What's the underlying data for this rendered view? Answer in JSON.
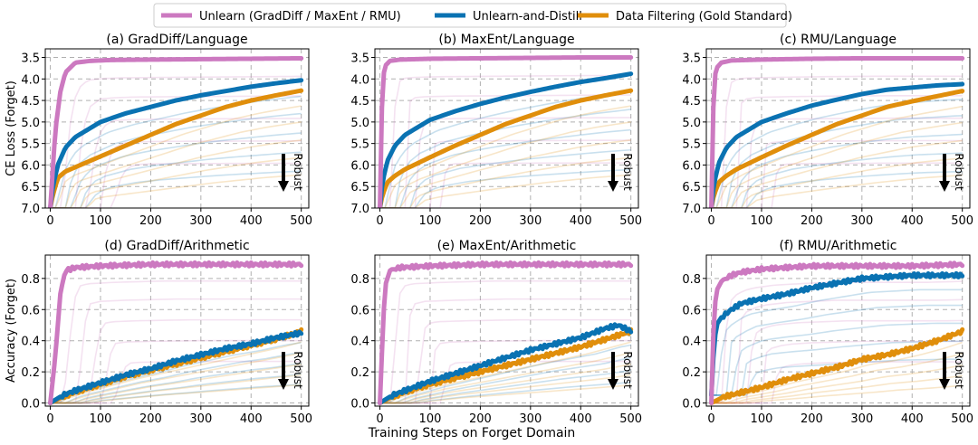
{
  "legend": {
    "items": [
      {
        "label": "Unlearn (GradDiff / MaxEnt / RMU)",
        "color": "#cc79c0"
      },
      {
        "label": "Unlearn-and-Distill",
        "color": "#0a72b2"
      },
      {
        "label": "Data Filtering (Gold Standard)",
        "color": "#e08e0b"
      }
    ]
  },
  "shared": {
    "xlabel": "Training Steps on Forget Domain",
    "robust_label": "Robust",
    "colors": {
      "unlearn": "#cc79c0",
      "distill": "#0a72b2",
      "filter": "#e08e0b",
      "grid": "#b0b0b0"
    }
  },
  "chart_data": [
    {
      "type": "line",
      "title": "(a) GradDiff/Language",
      "ylabel": "CE Loss (Forget)",
      "xlim": [
        -10,
        515
      ],
      "ylim": [
        7.0,
        3.3
      ],
      "y_inverted": true,
      "xticks": [
        0,
        100,
        200,
        300,
        400,
        500
      ],
      "xtick_labels": [
        "0",
        "100",
        "200",
        "300",
        "400",
        "500"
      ],
      "yticks": [
        3.5,
        4.0,
        4.5,
        5.0,
        5.5,
        6.0,
        6.5,
        7.0
      ],
      "ytick_labels": [
        "3.5",
        "4.0",
        "4.5",
        "5.0",
        "5.5",
        "6.0",
        "6.5",
        "7.0"
      ],
      "series": [
        {
          "name": "Unlearn (GradDiff / MaxEnt / RMU)",
          "x": [
            0,
            10,
            20,
            30,
            50,
            80,
            120,
            200,
            300,
            400,
            500
          ],
          "y": [
            7.0,
            5.2,
            4.3,
            3.85,
            3.62,
            3.58,
            3.56,
            3.55,
            3.54,
            3.53,
            3.52
          ]
        },
        {
          "name": "Unlearn-and-Distill",
          "x": [
            0,
            5,
            15,
            30,
            50,
            100,
            150,
            200,
            250,
            300,
            350,
            400,
            450,
            500
          ],
          "y": [
            7.0,
            6.5,
            6.0,
            5.6,
            5.35,
            5.0,
            4.8,
            4.65,
            4.5,
            4.38,
            4.28,
            4.18,
            4.1,
            4.03
          ]
        },
        {
          "name": "Data Filtering (Gold Standard)",
          "x": [
            0,
            5,
            15,
            30,
            50,
            100,
            150,
            200,
            250,
            300,
            350,
            400,
            450,
            500
          ],
          "y": [
            7.0,
            6.7,
            6.3,
            6.15,
            6.05,
            5.8,
            5.55,
            5.3,
            5.05,
            4.85,
            4.65,
            4.5,
            4.38,
            4.27
          ]
        }
      ]
    },
    {
      "type": "line",
      "title": "(b) MaxEnt/Language",
      "ylabel": "",
      "xlim": [
        -10,
        515
      ],
      "ylim": [
        7.0,
        3.3
      ],
      "y_inverted": true,
      "xticks": [
        0,
        100,
        200,
        300,
        400,
        500
      ],
      "xtick_labels": [
        "0",
        "100",
        "200",
        "300",
        "400",
        "500"
      ],
      "yticks": [
        3.5,
        4.0,
        4.5,
        5.0,
        5.5,
        6.0,
        6.5,
        7.0
      ],
      "ytick_labels": [
        "3.5",
        "4.0",
        "4.5",
        "5.0",
        "5.5",
        "6.0",
        "6.5",
        "7.0"
      ],
      "series": [
        {
          "name": "Unlearn (GradDiff / MaxEnt / RMU)",
          "x": [
            0,
            3,
            6,
            10,
            20,
            40,
            100,
            200,
            300,
            400,
            500
          ],
          "y": [
            7.0,
            5.0,
            4.0,
            3.7,
            3.58,
            3.55,
            3.53,
            3.52,
            3.51,
            3.5,
            3.5
          ]
        },
        {
          "name": "Unlearn-and-Distill",
          "x": [
            0,
            5,
            15,
            30,
            50,
            100,
            150,
            200,
            250,
            300,
            350,
            400,
            450,
            500
          ],
          "y": [
            7.0,
            6.4,
            5.9,
            5.55,
            5.3,
            4.95,
            4.75,
            4.58,
            4.43,
            4.3,
            4.18,
            4.07,
            3.98,
            3.88
          ]
        },
        {
          "name": "Data Filtering (Gold Standard)",
          "x": [
            0,
            5,
            15,
            30,
            50,
            100,
            150,
            200,
            250,
            300,
            350,
            400,
            450,
            500
          ],
          "y": [
            7.0,
            6.7,
            6.4,
            6.25,
            6.1,
            5.82,
            5.55,
            5.3,
            5.05,
            4.85,
            4.65,
            4.5,
            4.38,
            4.27
          ]
        }
      ]
    },
    {
      "type": "line",
      "title": "(c) RMU/Language",
      "ylabel": "",
      "xlim": [
        -10,
        515
      ],
      "ylim": [
        7.0,
        3.3
      ],
      "y_inverted": true,
      "xticks": [
        0,
        100,
        200,
        300,
        400,
        500
      ],
      "xtick_labels": [
        "0",
        "100",
        "200",
        "300",
        "400",
        "500"
      ],
      "yticks": [
        3.5,
        4.0,
        4.5,
        5.0,
        5.5,
        6.0,
        6.5,
        7.0
      ],
      "ytick_labels": [
        "3.5",
        "4.0",
        "4.5",
        "5.0",
        "5.5",
        "6.0",
        "6.5",
        "7.0"
      ],
      "series": [
        {
          "name": "Unlearn (GradDiff / MaxEnt / RMU)",
          "x": [
            0,
            3,
            6,
            10,
            20,
            40,
            100,
            200,
            300,
            400,
            500
          ],
          "y": [
            7.0,
            5.0,
            4.0,
            3.75,
            3.62,
            3.57,
            3.55,
            3.53,
            3.52,
            3.52,
            3.52
          ]
        },
        {
          "name": "Unlearn-and-Distill",
          "x": [
            0,
            5,
            15,
            30,
            50,
            100,
            150,
            200,
            250,
            300,
            350,
            400,
            450,
            500
          ],
          "y": [
            7.0,
            6.45,
            5.95,
            5.6,
            5.35,
            5.0,
            4.8,
            4.62,
            4.48,
            4.35,
            4.25,
            4.2,
            4.15,
            4.12
          ]
        },
        {
          "name": "Data Filtering (Gold Standard)",
          "x": [
            0,
            5,
            15,
            30,
            50,
            100,
            150,
            200,
            250,
            300,
            350,
            400,
            450,
            500
          ],
          "y": [
            7.0,
            6.7,
            6.4,
            6.25,
            6.1,
            5.82,
            5.55,
            5.3,
            5.05,
            4.85,
            4.65,
            4.52,
            4.4,
            4.28
          ]
        }
      ]
    },
    {
      "type": "line",
      "title": "(d) GradDiff/Arithmetic",
      "ylabel": "Accuracy (Forget)",
      "xlim": [
        -10,
        515
      ],
      "ylim": [
        -0.02,
        0.95
      ],
      "y_inverted": false,
      "xticks": [
        0,
        100,
        200,
        300,
        400,
        500
      ],
      "xtick_labels": [
        "0",
        "100",
        "200",
        "300",
        "400",
        "500"
      ],
      "yticks": [
        0.0,
        0.2,
        0.4,
        0.6,
        0.8
      ],
      "ytick_labels": [
        "0.0",
        "0.2",
        "0.4",
        "0.6",
        "0.8"
      ],
      "series": [
        {
          "name": "Unlearn (GradDiff / MaxEnt / RMU)",
          "x": [
            0,
            10,
            20,
            30,
            50,
            100,
            200,
            300,
            400,
            500
          ],
          "y": [
            0.0,
            0.3,
            0.7,
            0.85,
            0.87,
            0.88,
            0.89,
            0.89,
            0.89,
            0.89
          ]
        },
        {
          "name": "Unlearn-and-Distill",
          "x": [
            0,
            25,
            50,
            100,
            150,
            200,
            250,
            300,
            350,
            400,
            450,
            500
          ],
          "y": [
            0.0,
            0.05,
            0.08,
            0.13,
            0.18,
            0.22,
            0.27,
            0.31,
            0.35,
            0.38,
            0.42,
            0.45
          ]
        },
        {
          "name": "Data Filtering (Gold Standard)",
          "x": [
            0,
            25,
            50,
            100,
            150,
            200,
            250,
            300,
            350,
            400,
            450,
            500
          ],
          "y": [
            0.0,
            0.04,
            0.07,
            0.12,
            0.17,
            0.21,
            0.25,
            0.29,
            0.33,
            0.37,
            0.41,
            0.46
          ]
        }
      ]
    },
    {
      "type": "line",
      "title": "(e) MaxEnt/Arithmetic",
      "ylabel": "",
      "xlim": [
        -10,
        515
      ],
      "ylim": [
        -0.02,
        0.95
      ],
      "y_inverted": false,
      "xticks": [
        0,
        100,
        200,
        300,
        400,
        500
      ],
      "xtick_labels": [
        "0",
        "100",
        "200",
        "300",
        "400",
        "500"
      ],
      "yticks": [
        0.0,
        0.2,
        0.4,
        0.6,
        0.8
      ],
      "ytick_labels": [
        "0.0",
        "0.2",
        "0.4",
        "0.6",
        "0.8"
      ],
      "series": [
        {
          "name": "Unlearn (GradDiff / MaxEnt / RMU)",
          "x": [
            0,
            5,
            10,
            20,
            40,
            100,
            200,
            300,
            400,
            500
          ],
          "y": [
            0.0,
            0.4,
            0.75,
            0.85,
            0.87,
            0.88,
            0.89,
            0.89,
            0.89,
            0.89
          ]
        },
        {
          "name": "Unlearn-and-Distill",
          "x": [
            0,
            25,
            50,
            100,
            150,
            200,
            250,
            300,
            350,
            400,
            450,
            475,
            500
          ],
          "y": [
            0.0,
            0.05,
            0.08,
            0.14,
            0.19,
            0.24,
            0.29,
            0.34,
            0.38,
            0.42,
            0.48,
            0.5,
            0.46
          ]
        },
        {
          "name": "Data Filtering (Gold Standard)",
          "x": [
            0,
            25,
            50,
            100,
            150,
            200,
            250,
            300,
            350,
            400,
            450,
            500
          ],
          "y": [
            0.0,
            0.04,
            0.07,
            0.12,
            0.16,
            0.2,
            0.24,
            0.28,
            0.32,
            0.36,
            0.41,
            0.46
          ]
        }
      ]
    },
    {
      "type": "line",
      "title": "(f) RMU/Arithmetic",
      "ylabel": "",
      "xlim": [
        -10,
        515
      ],
      "ylim": [
        -0.02,
        0.95
      ],
      "y_inverted": false,
      "xticks": [
        0,
        100,
        200,
        300,
        400,
        500
      ],
      "xtick_labels": [
        "0",
        "100",
        "200",
        "300",
        "400",
        "500"
      ],
      "yticks": [
        0.0,
        0.2,
        0.4,
        0.6,
        0.8
      ],
      "ytick_labels": [
        "0.0",
        "0.2",
        "0.4",
        "0.6",
        "0.8"
      ],
      "series": [
        {
          "name": "Unlearn (GradDiff / MaxEnt / RMU)",
          "x": [
            0,
            5,
            10,
            20,
            40,
            60,
            100,
            200,
            300,
            400,
            500
          ],
          "y": [
            0.0,
            0.55,
            0.72,
            0.78,
            0.82,
            0.84,
            0.86,
            0.88,
            0.88,
            0.88,
            0.89
          ]
        },
        {
          "name": "Unlearn-and-Distill",
          "x": [
            0,
            5,
            10,
            20,
            40,
            60,
            100,
            150,
            200,
            250,
            300,
            350,
            400,
            450,
            500
          ],
          "y": [
            0.05,
            0.35,
            0.5,
            0.55,
            0.6,
            0.64,
            0.67,
            0.7,
            0.74,
            0.77,
            0.8,
            0.81,
            0.82,
            0.82,
            0.82
          ]
        },
        {
          "name": "Data Filtering (Gold Standard)",
          "x": [
            0,
            25,
            50,
            100,
            150,
            200,
            250,
            300,
            350,
            400,
            450,
            500
          ],
          "y": [
            0.0,
            0.04,
            0.06,
            0.1,
            0.15,
            0.19,
            0.23,
            0.28,
            0.31,
            0.35,
            0.4,
            0.46
          ]
        }
      ]
    }
  ]
}
